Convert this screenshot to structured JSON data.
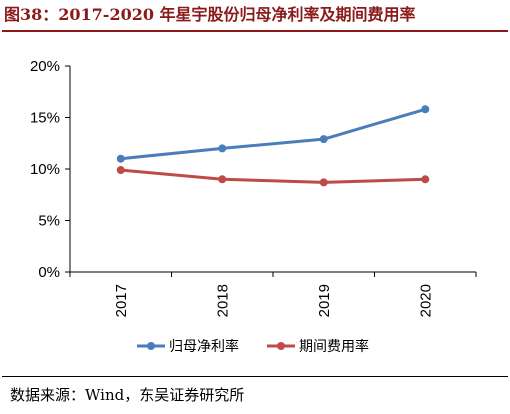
{
  "figure": {
    "title": "图38：2017-2020 年星宇股份归母净利率及期间费用率",
    "source": "数据来源：Wind，东吴证券研究所"
  },
  "chart_data": {
    "type": "line",
    "title": "",
    "xlabel": "",
    "ylabel": "",
    "categories": [
      "2017",
      "2018",
      "2019",
      "2020"
    ],
    "ylim": [
      0,
      20
    ],
    "yticks": [
      0,
      5,
      10,
      15,
      20
    ],
    "ytick_labels": [
      "0%",
      "5%",
      "10%",
      "15%",
      "20%"
    ],
    "grid": false,
    "legend": "bottom",
    "series": [
      {
        "name": "归母净利率",
        "values": [
          11.0,
          12.0,
          12.9,
          15.8
        ],
        "color": "#4a7ebb"
      },
      {
        "name": "期间费用率",
        "values": [
          9.9,
          9.0,
          8.7,
          9.0
        ],
        "color": "#be4b48"
      }
    ]
  }
}
